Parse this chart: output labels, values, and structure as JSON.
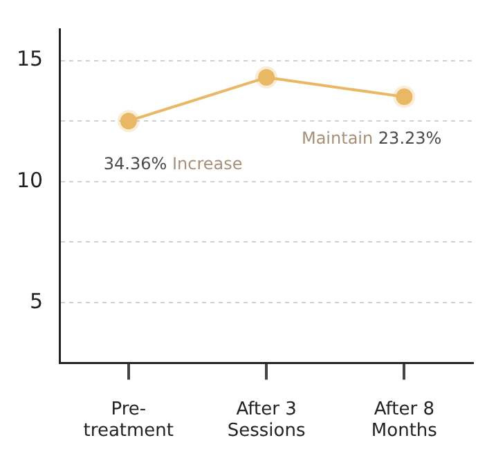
{
  "chart_data": {
    "type": "line",
    "categories": [
      "Pre-treatment",
      "After 3 Sessions",
      "After 8 Months"
    ],
    "series": [
      {
        "color": "#e8b865",
        "values": [
          12.5,
          14.3,
          13.5
        ]
      }
    ],
    "ylim": [
      2.5,
      16.3
    ],
    "yticks": [
      {
        "value": 5,
        "label": "5"
      },
      {
        "value": 7.5,
        "label": null
      },
      {
        "value": 10,
        "label": "10"
      },
      {
        "value": 12.5,
        "label": null
      },
      {
        "value": 15,
        "label": "15"
      }
    ],
    "grid": "y",
    "marker": "circle",
    "line_style": "solid",
    "legend": false,
    "annotations": [
      "34.36% Increase",
      "Maintain 23.23%"
    ]
  }
}
